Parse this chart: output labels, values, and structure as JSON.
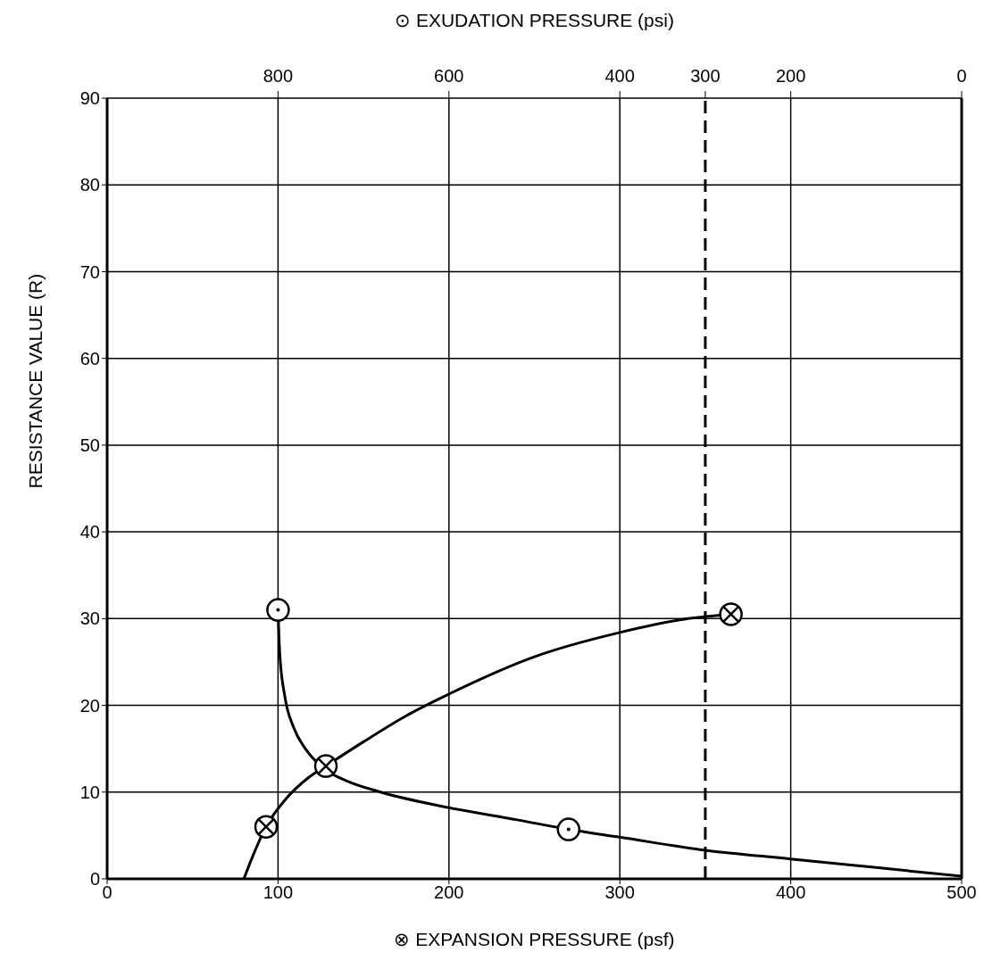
{
  "chart_data": {
    "type": "line",
    "xlabel": "⊗ EXPANSION PRESSURE (psf)",
    "x2label": "⊙ EXUDATION PRESSURE (psi)",
    "ylabel": "RESISTANCE VALUE (R)",
    "xlim": [
      0,
      500
    ],
    "xticks": [
      0,
      100,
      200,
      300,
      400,
      500
    ],
    "x2lim": [
      1000,
      0
    ],
    "x2ticks": [
      800,
      600,
      400,
      300,
      200,
      0
    ],
    "ylim": [
      0,
      90
    ],
    "yticks": [
      0,
      10,
      20,
      30,
      40,
      50,
      60,
      70,
      80,
      90
    ],
    "grid": true,
    "series": [
      {
        "color": "#000000",
        "marker": "none",
        "line_style": "solid",
        "x": [
          100,
          101,
          104,
          109,
          116,
          124,
          130,
          140,
          160,
          200,
          240,
          270,
          300,
          350,
          400,
          450,
          500
        ],
        "values": [
          31,
          26,
          21,
          17.5,
          15,
          13.2,
          12.3,
          11.3,
          10,
          8.2,
          6.8,
          5.7,
          4.8,
          3.3,
          2.3,
          1.3,
          0.3
        ]
      },
      {
        "color": "#000000",
        "marker": "none",
        "line_style": "solid",
        "x": [
          80,
          86,
          93,
          105,
          118,
          128,
          150,
          175,
          200,
          250,
          300,
          340,
          365
        ],
        "values": [
          0,
          3,
          6,
          9.3,
          11.7,
          13,
          15.8,
          18.8,
          21.3,
          25.6,
          28.4,
          30,
          30.5
        ]
      },
      {
        "type": "scatter",
        "color": "#000000",
        "marker": "circle",
        "x": [
          100,
          270
        ],
        "values": [
          31,
          5.7
        ]
      },
      {
        "type": "scatter",
        "color": "#000000",
        "marker": "circle",
        "x": [
          93,
          128,
          365
        ],
        "values": [
          6,
          13,
          30.5
        ]
      }
    ],
    "ref_lines": [
      {
        "axis": "x",
        "value": 350,
        "color": "#000000",
        "line_style": "dashed"
      }
    ]
  }
}
